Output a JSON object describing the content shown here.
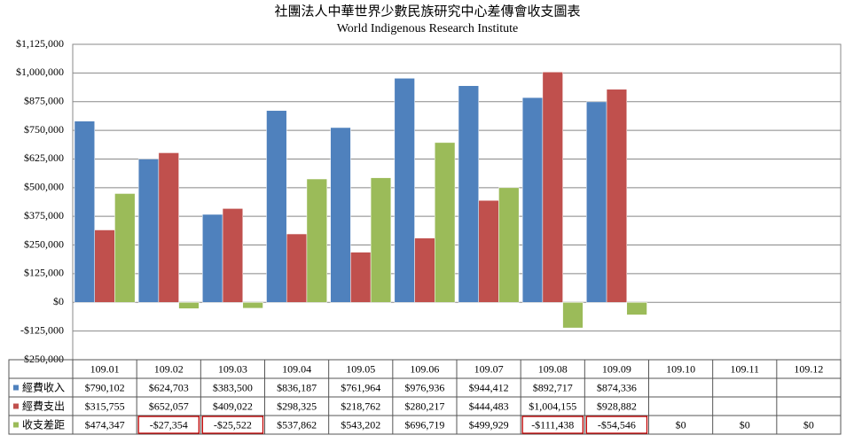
{
  "chart_data": {
    "type": "bar",
    "title": "社團法人中華世界少數民族研究中心差傳會收支圖表",
    "subtitle": "World Indigenous Research Institute",
    "categories": [
      "109.01",
      "109.02",
      "109.03",
      "109.04",
      "109.05",
      "109.06",
      "109.07",
      "109.08",
      "109.09",
      "109.10",
      "109.11",
      "109.12"
    ],
    "series": [
      {
        "name": "經費收入",
        "color": "#4f81bd",
        "values": [
          790102,
          624703,
          383500,
          836187,
          761964,
          976936,
          944412,
          892717,
          874336,
          null,
          null,
          null
        ],
        "value_labels": [
          "$790,102",
          "$624,703",
          "$383,500",
          "$836,187",
          "$761,964",
          "$976,936",
          "$944,412",
          "$892,717",
          "$874,336",
          null,
          null,
          null
        ]
      },
      {
        "name": "經費支出",
        "color": "#c0504d",
        "values": [
          315755,
          652057,
          409022,
          298325,
          218762,
          280217,
          444483,
          1004155,
          928882,
          null,
          null,
          null
        ],
        "value_labels": [
          "$315,755",
          "$652,057",
          "$409,022",
          "$298,325",
          "$218,762",
          "$280,217",
          "$444,483",
          "$1,004,155",
          "$928,882",
          null,
          null,
          null
        ]
      },
      {
        "name": "收支差距",
        "color": "#9bbb59",
        "values": [
          474347,
          -27354,
          -25522,
          537862,
          543202,
          696719,
          499929,
          -111438,
          -54546,
          0,
          0,
          0
        ],
        "value_labels": [
          "$474,347",
          "-$27,354",
          "-$25,522",
          "$537,862",
          "$543,202",
          "$696,719",
          "$499,929",
          "-$111,438",
          "-$54,546",
          "$0",
          "$0",
          "$0"
        ]
      }
    ],
    "ylim": [
      -250000,
      1125000
    ],
    "yticks": [
      {
        "value": -250000,
        "label": "-$250,000"
      },
      {
        "value": -125000,
        "label": "-$125,000"
      },
      {
        "value": 0,
        "label": "$0"
      },
      {
        "value": 125000,
        "label": "$125,000"
      },
      {
        "value": 250000,
        "label": "$250,000"
      },
      {
        "value": 375000,
        "label": "$375,000"
      },
      {
        "value": 500000,
        "label": "$500,000"
      },
      {
        "value": 625000,
        "label": "$625,000"
      },
      {
        "value": 750000,
        "label": "$750,000"
      },
      {
        "value": 875000,
        "label": "$875,000"
      },
      {
        "value": 1000000,
        "label": "$1,000,000"
      },
      {
        "value": 1125000,
        "label": "$1,125,000"
      }
    ],
    "grid": true,
    "negative_highlight": "#c00000"
  }
}
